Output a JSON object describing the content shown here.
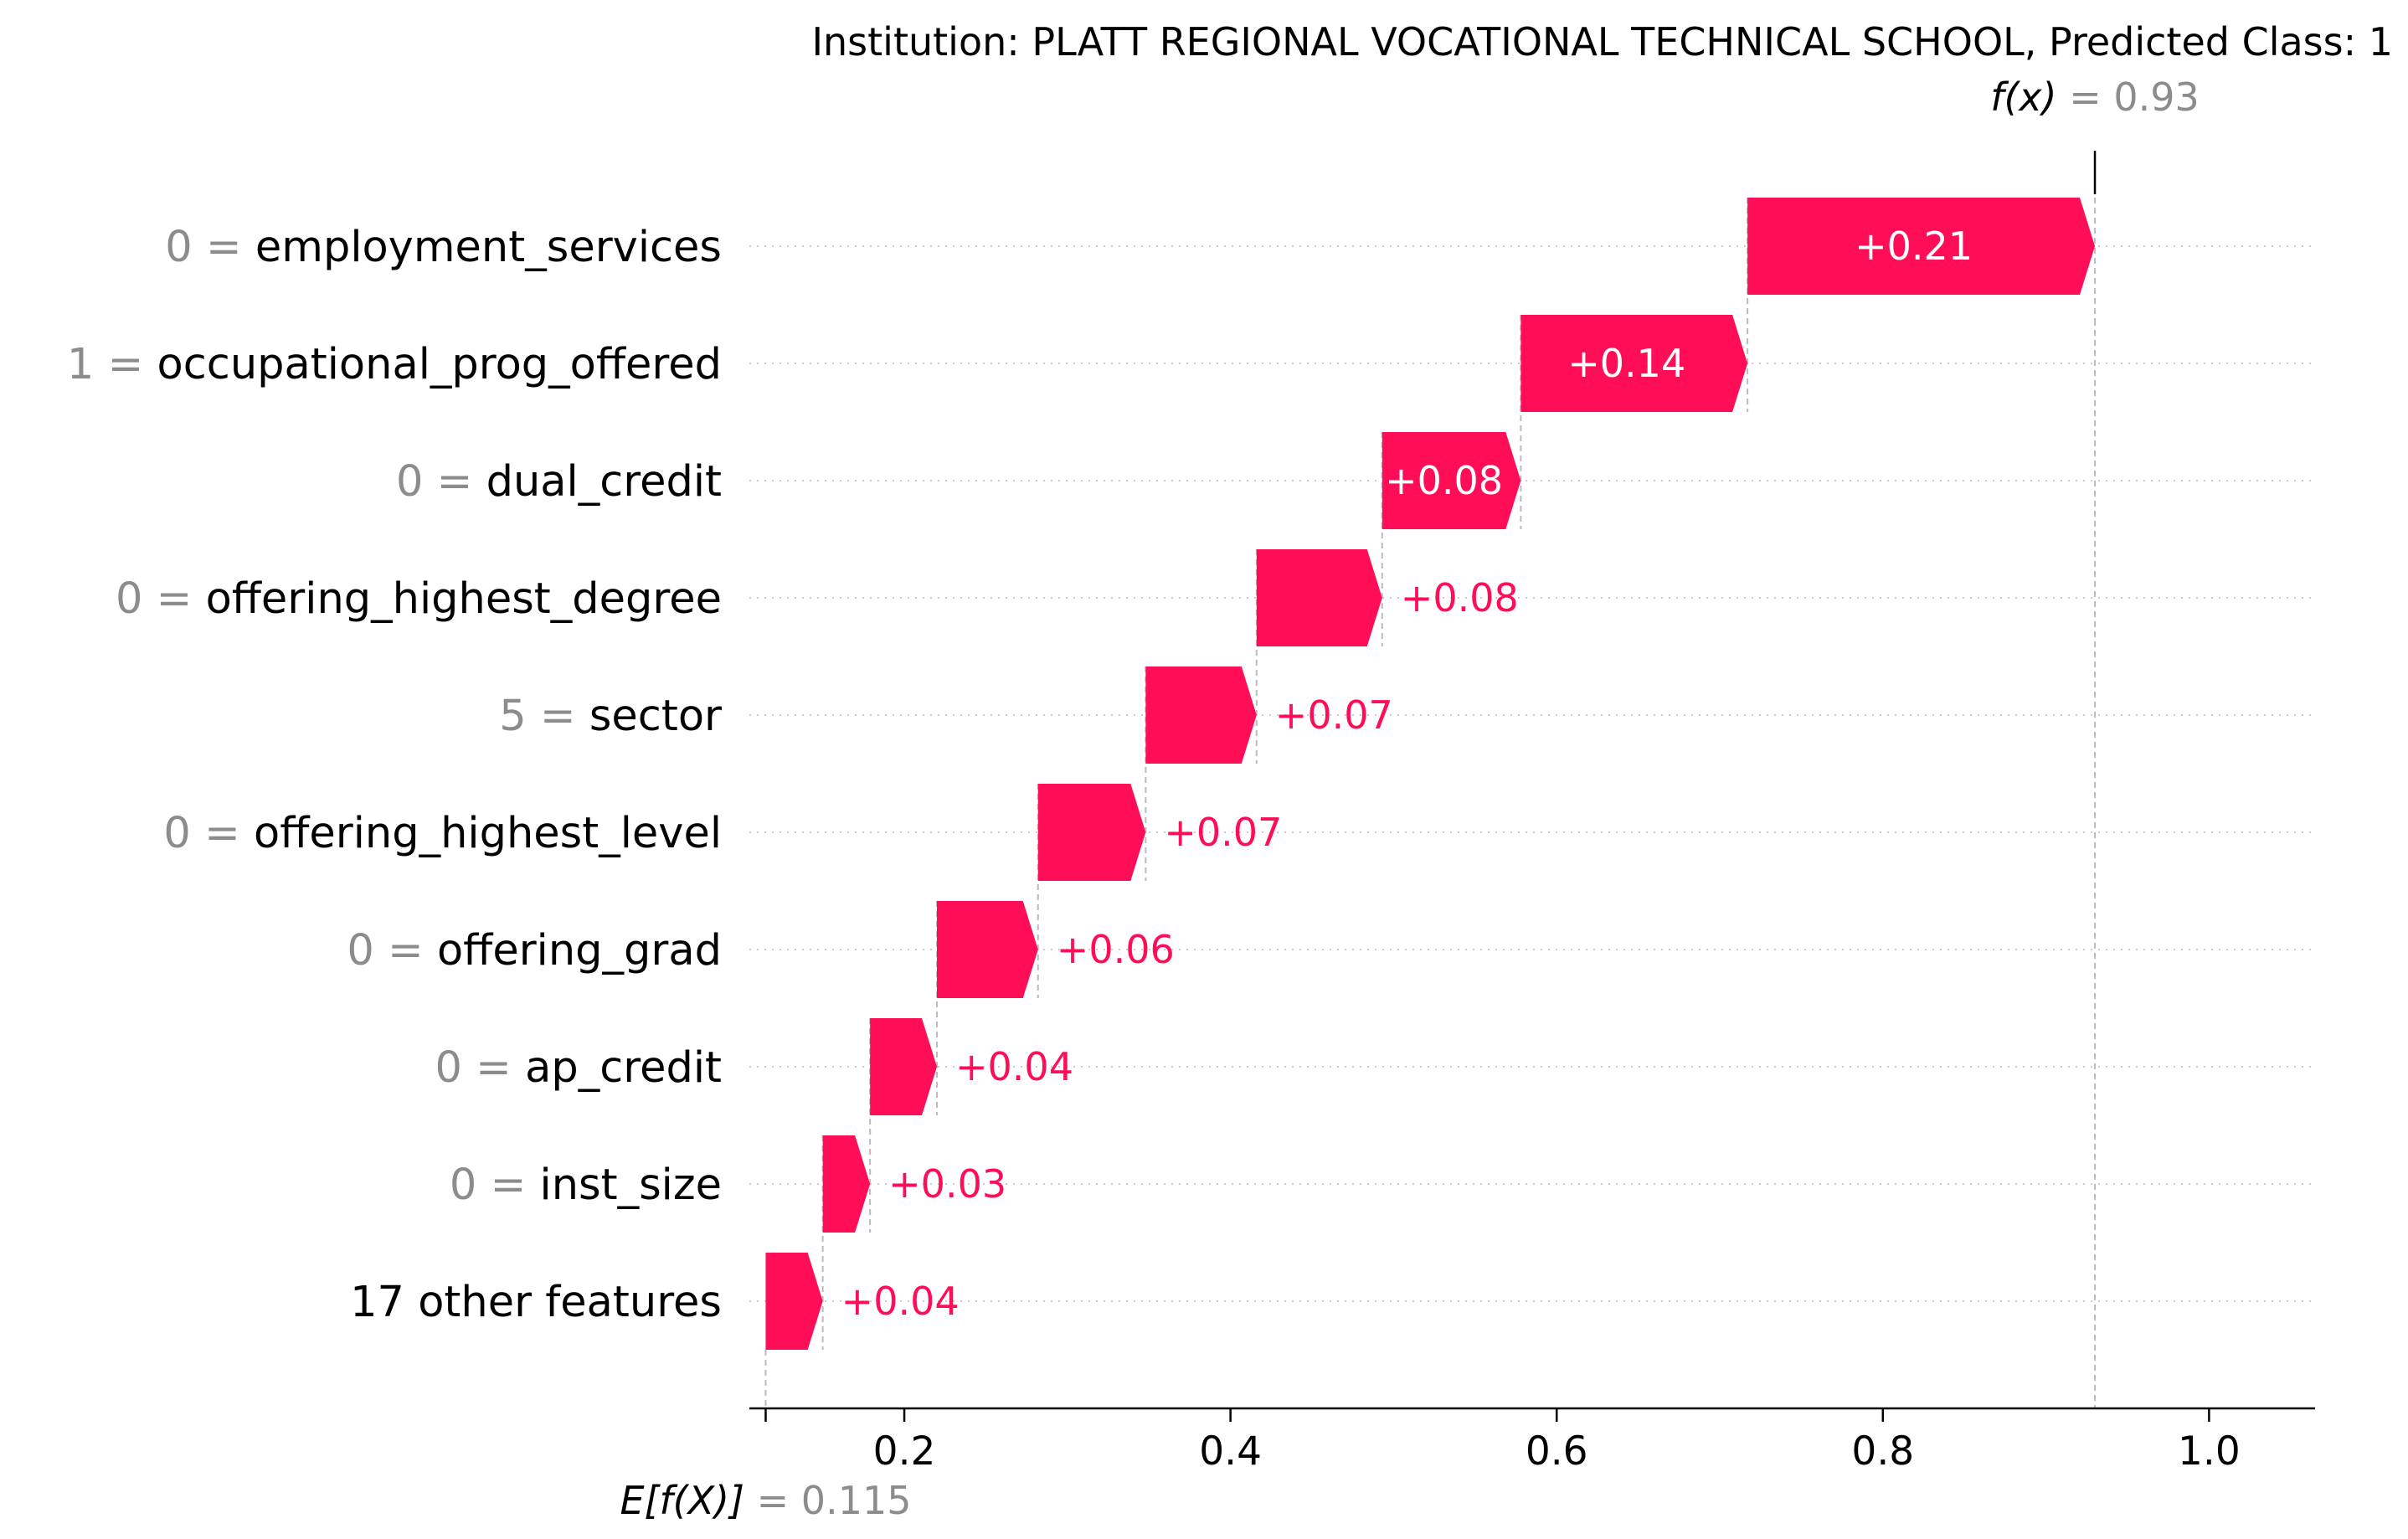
{
  "chart_data": {
    "type": "bar",
    "title": "Institution: PLATT REGIONAL VOCATIONAL TECHNICAL SCHOOL, Predicted Class: 1",
    "base_value": 0.115,
    "base_value_label": "E[f(X)]",
    "base_value_text": "= 0.115",
    "output_value": 0.93,
    "output_value_label": "f(x)",
    "output_value_text": "= 0.93",
    "xlim": [
      0.105,
      1.065
    ],
    "xticks": [
      0.2,
      0.4,
      0.6,
      0.8,
      1.0
    ],
    "xtick_labels": [
      "0.2",
      "0.4",
      "0.6",
      "0.8",
      "1.0"
    ],
    "positive_color": "#ff0d57",
    "features": [
      {
        "value_text": "0 =",
        "name": "employment_services",
        "contribution": 0.213,
        "label": "+0.21"
      },
      {
        "value_text": "1 =",
        "name": "occupational_prog_offered",
        "contribution": 0.139,
        "label": "+0.14"
      },
      {
        "value_text": "0 =",
        "name": "dual_credit",
        "contribution": 0.085,
        "label": "+0.08"
      },
      {
        "value_text": "0 =",
        "name": "offering_highest_degree",
        "contribution": 0.077,
        "label": "+0.08"
      },
      {
        "value_text": "5 =",
        "name": "sector",
        "contribution": 0.068,
        "label": "+0.07"
      },
      {
        "value_text": "0 =",
        "name": "offering_highest_level",
        "contribution": 0.066,
        "label": "+0.07"
      },
      {
        "value_text": "0 =",
        "name": "offering_grad",
        "contribution": 0.062,
        "label": "+0.06"
      },
      {
        "value_text": "0 =",
        "name": "ap_credit",
        "contribution": 0.041,
        "label": "+0.04"
      },
      {
        "value_text": "0 =",
        "name": "inst_size",
        "contribution": 0.029,
        "label": "+0.03"
      },
      {
        "value_text": "",
        "name": "17 other features",
        "contribution": 0.035,
        "label": "+0.04"
      }
    ]
  }
}
